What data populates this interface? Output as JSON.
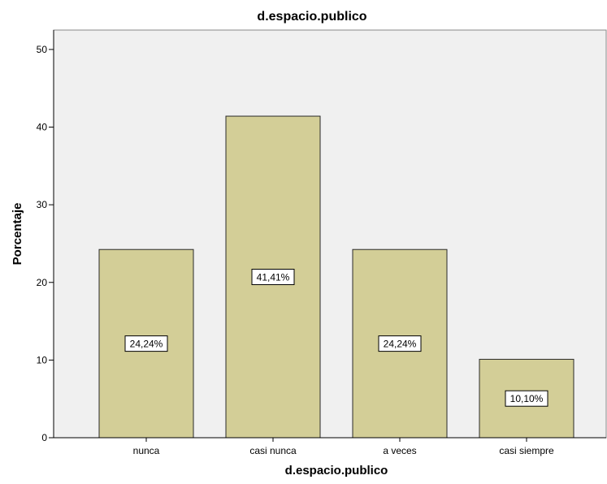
{
  "chart_data": {
    "type": "bar",
    "title": "d.espacio.publico",
    "xlabel": "d.espacio.publico",
    "ylabel": "Porcentaje",
    "categories": [
      "nunca",
      "casi nunca",
      "a veces",
      "casi siempre"
    ],
    "values": [
      24.24,
      41.41,
      24.24,
      10.1
    ],
    "data_labels": [
      "24,24%",
      "41,41%",
      "24,24%",
      "10,10%"
    ],
    "yticks": [
      "0",
      "10",
      "20",
      "30",
      "40",
      "50"
    ],
    "ylim": [
      0,
      52.5
    ],
    "grid": false,
    "legend": "none",
    "colors": {
      "plot_background": "#f0f0f0",
      "bar_fill": "#d3ce97",
      "bar_stroke": "#2a2a2a",
      "axis": "#000000"
    }
  }
}
